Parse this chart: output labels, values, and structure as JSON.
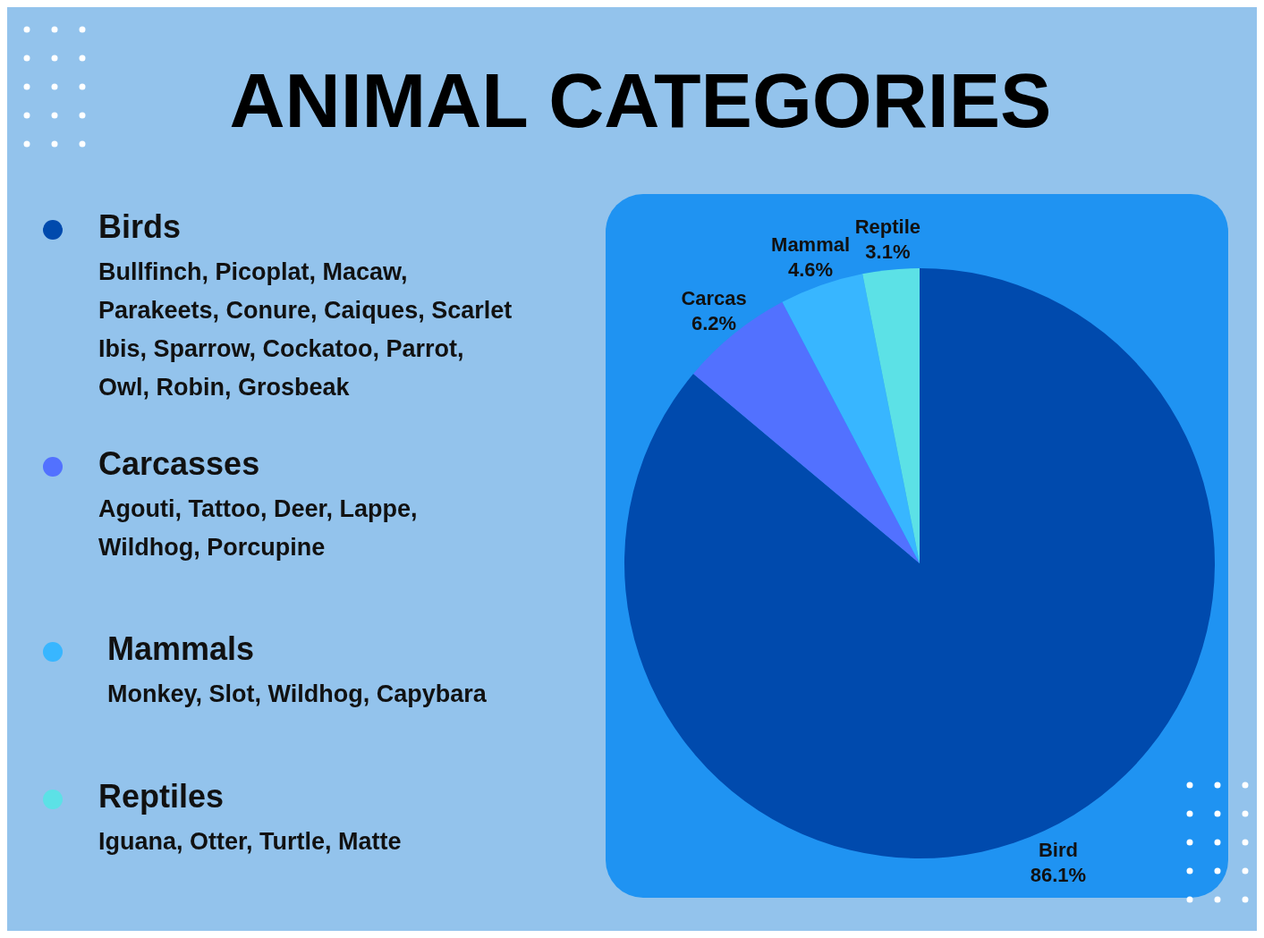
{
  "chart_data": {
    "type": "pie",
    "title": "ANIMAL CATEGORIES",
    "categories": [
      "Bird",
      "Carcas",
      "Mammal",
      "Reptile"
    ],
    "values": [
      86.1,
      6.2,
      4.6,
      3.1
    ],
    "value_labels": [
      "86.1%",
      "6.2%",
      "4.6%",
      "3.1%"
    ],
    "colors": [
      "#004aad",
      "#5271ff",
      "#38b6ff",
      "#5ce1e6"
    ],
    "annotations": [
      "Birds",
      "Bullfinch, Picoplat, Macaw, Parakeets, Conure, Caiques, Scarlet Ibis, Sparrow, Cockatoo, Parrot, Owl, Robin, Grosbeak",
      "Carcasses",
      "Agouti, Tattoo, Deer, Lappe, Wildhog, Porcupine",
      "Mammals",
      "Monkey, Slot, Wildhog, Capybara",
      "Reptiles",
      "Iguana, Otter, Turtle, Matte"
    ]
  }
}
